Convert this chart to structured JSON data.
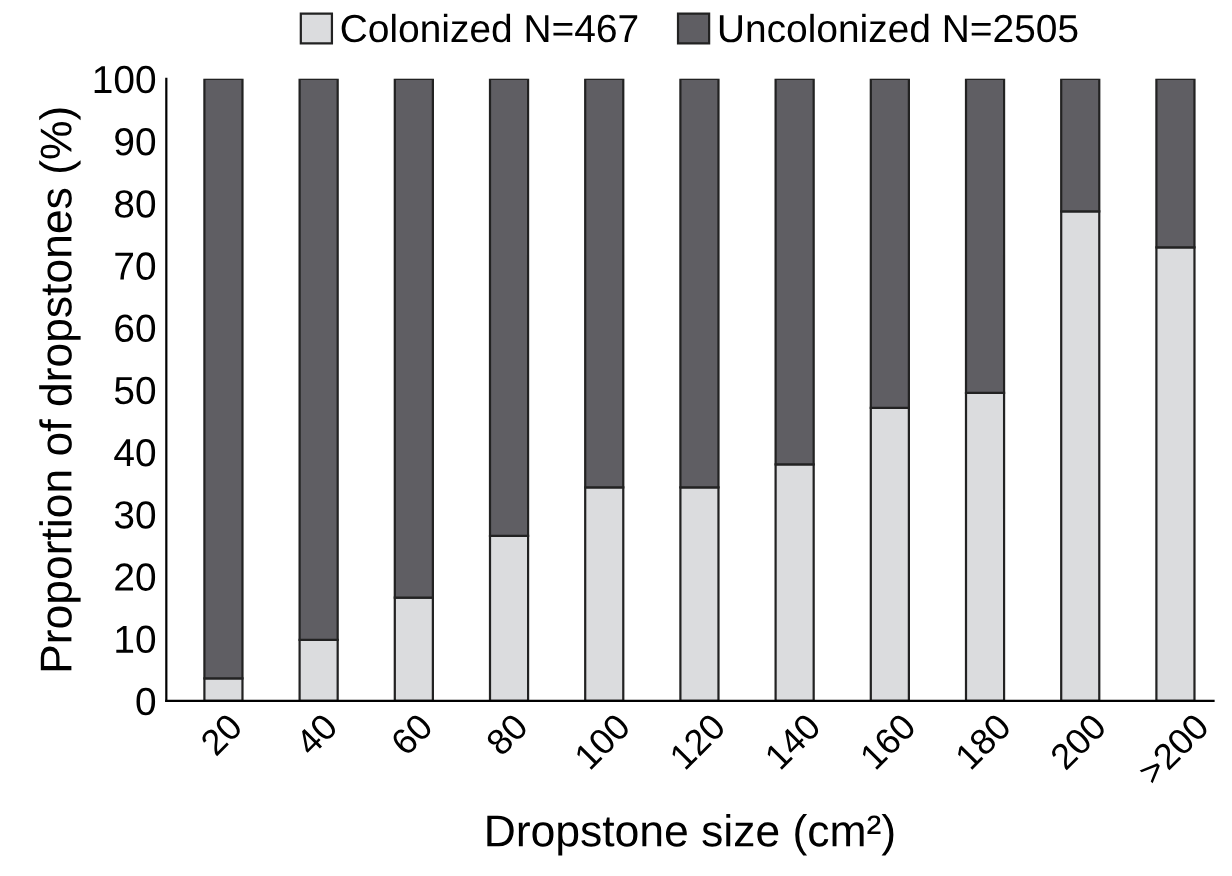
{
  "chart_data": {
    "type": "bar",
    "stacked": true,
    "xlabel": "Dropstone size (cm²)",
    "ylabel": "Proportion of dropstones (%)",
    "categories": [
      "20",
      "40",
      "60",
      "80",
      "100",
      "120",
      "140",
      "160",
      "180",
      "200",
      ">200"
    ],
    "series": [
      {
        "name": "Colonized N=467",
        "color": "#dbdcde",
        "values": [
          3.6,
          9.8,
          16.6,
          26.5,
          34.3,
          34.3,
          38.0,
          47.1,
          49.5,
          78.7,
          72.9
        ]
      },
      {
        "name": "Uncolonized N=2505",
        "color": "#5f5e63",
        "values": [
          96.4,
          90.2,
          83.4,
          73.5,
          65.7,
          65.7,
          62.0,
          52.9,
          50.5,
          21.3,
          27.1
        ]
      }
    ],
    "ylim": [
      0,
      100
    ],
    "yticks": [
      0,
      10,
      20,
      30,
      40,
      50,
      60,
      70,
      80,
      90,
      100
    ],
    "grid": false,
    "legend": "top"
  }
}
